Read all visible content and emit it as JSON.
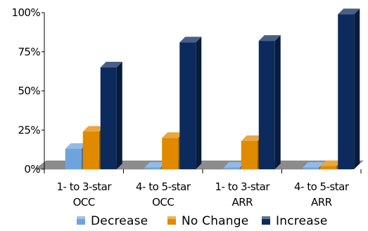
{
  "chart_data": {
    "type": "bar",
    "style": "3d-clustered-column",
    "categories": [
      [
        "1- to 3-star",
        "OCC"
      ],
      [
        "4- to 5-star",
        "OCC"
      ],
      [
        "1- to 3-star",
        "ARR"
      ],
      [
        "4- to 5-star",
        "ARR"
      ]
    ],
    "series": [
      {
        "name": "Decrease",
        "color": "#6fa3dc",
        "values": [
          13,
          1,
          1,
          1
        ]
      },
      {
        "name": "No Change",
        "color": "#e08a00",
        "values": [
          24,
          20,
          18,
          2
        ]
      },
      {
        "name": "Increase",
        "color": "#0d2a5c",
        "values": [
          65,
          81,
          82,
          99
        ]
      }
    ],
    "y_ticks": [
      "0%",
      "25%",
      "50%",
      "75%",
      "100%"
    ],
    "y_tick_values": [
      0,
      25,
      50,
      75,
      100
    ],
    "ylim": [
      0,
      100
    ],
    "grid": false,
    "legend_position": "bottom",
    "floor_color": "#8c8c8c"
  }
}
